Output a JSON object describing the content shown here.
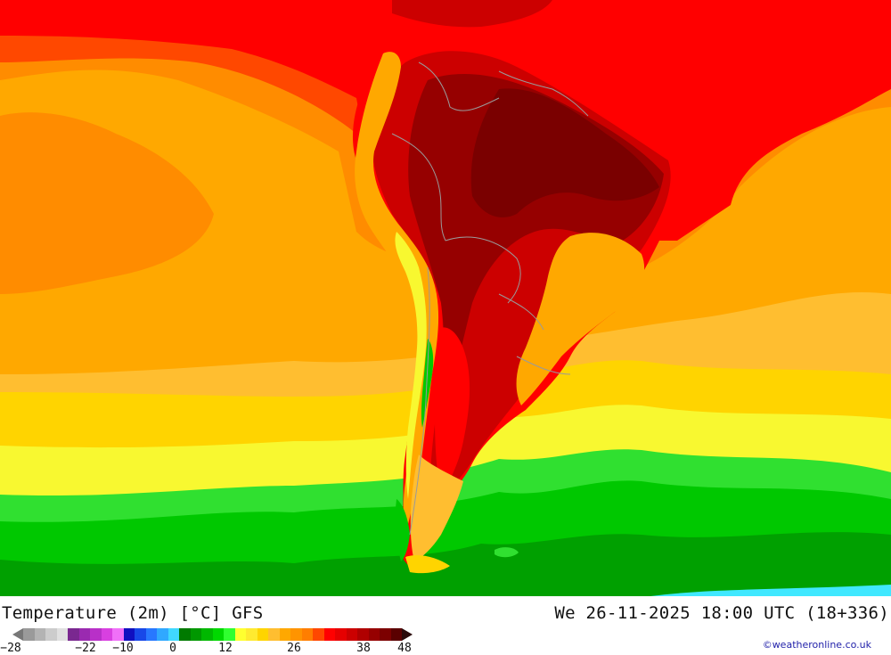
{
  "title": {
    "left": "Temperature (2m) [°C] GFS",
    "right": "We 26-11-2025 18:00 UTC (18+336)"
  },
  "credit": "©weatheronline.co.uk",
  "legend": {
    "tick_labels": [
      "-28",
      "-22",
      "-10",
      "0",
      "12",
      "26",
      "38",
      "48"
    ],
    "colors": [
      "#9a9a9a",
      "#b3b3b3",
      "#cccccc",
      "#e0e0e0",
      "#7a2890",
      "#9a2ab0",
      "#b830c8",
      "#d840e0",
      "#f070f8",
      "#1010c0",
      "#1848e8",
      "#2878ff",
      "#30a8ff",
      "#40d8ff",
      "#007a00",
      "#009800",
      "#00b800",
      "#00d800",
      "#30ff30",
      "#ffff30",
      "#ffea30",
      "#ffd400",
      "#ffbe30",
      "#ffa800",
      "#ff9400",
      "#ff7e00",
      "#ff4800",
      "#ff0000",
      "#e60000",
      "#cc0000",
      "#b00000",
      "#960000",
      "#7c0000",
      "#5a0000"
    ]
  },
  "map": {
    "colors": {
      "ocean_green_dark": "#00a000",
      "ocean_green": "#00c800",
      "ocean_green_light": "#30e030",
      "yellow": "#f8f830",
      "yellow_orange": "#ffd400",
      "light_orange": "#ffbe30",
      "orange": "#ffa800",
      "dark_orange": "#ff8c00",
      "red_orange": "#ff4800",
      "red": "#ff0000",
      "dark_red": "#cc0000",
      "deep_red": "#960000",
      "maroon": "#7a0000",
      "cyan": "#40e8ff",
      "border": "#9a9a9a"
    }
  }
}
